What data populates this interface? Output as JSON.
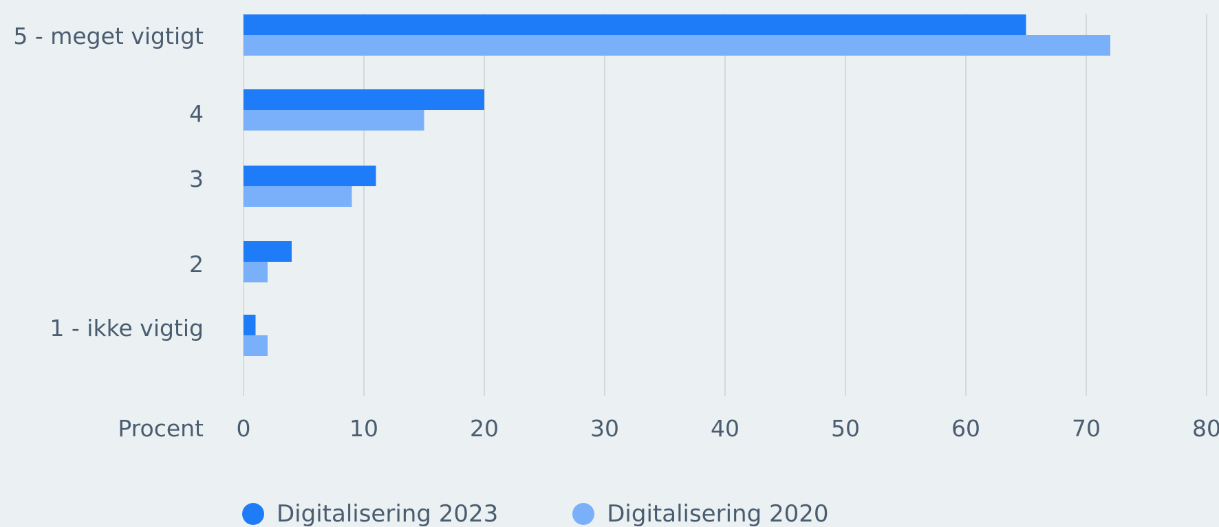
{
  "chart_data": {
    "type": "bar",
    "orientation": "horizontal",
    "categories": [
      "5 - meget vigtigt",
      "4",
      "3",
      "2",
      "1 - ikke vigtig"
    ],
    "series": [
      {
        "name": "Digitalisering 2023",
        "color": "#1f7cf8",
        "values": [
          65,
          20,
          11,
          4,
          1
        ]
      },
      {
        "name": "Digitalisering 2020",
        "color": "#7ab0fa",
        "values": [
          72,
          15,
          9,
          2,
          2
        ]
      }
    ],
    "xlabel": "Procent",
    "xlim": [
      0,
      80
    ],
    "xticks": [
      0,
      10,
      20,
      30,
      40,
      50,
      60,
      70,
      80
    ],
    "grid": "vertical",
    "legend_position": "bottom"
  }
}
